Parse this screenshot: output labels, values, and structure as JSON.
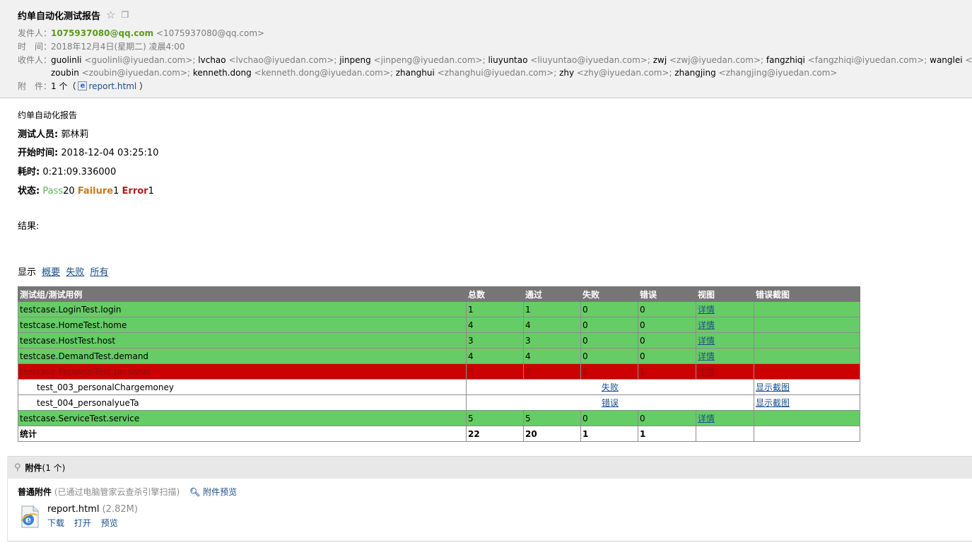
{
  "header": {
    "subject": "约单自动化测试报告",
    "sender_label": "发件人：",
    "sender_name": "1075937080@qq.com",
    "sender_addr": "<1075937080@qq.com>",
    "time_label": "时　间：",
    "time_value": "2018年12月4日(星期二) 凌晨4:00",
    "recipients_label": "收件人：",
    "recipients": [
      {
        "name": "guolinli",
        "addr": "<guolinli@iyuedan.com>;"
      },
      {
        "name": "lvchao",
        "addr": "<lvchao@iyuedan.com>;"
      },
      {
        "name": "jinpeng",
        "addr": "<jinpeng@iyuedan.com>;"
      },
      {
        "name": "liuyuntao",
        "addr": "<liuyuntao@iyuedan.com>;"
      },
      {
        "name": "zwj",
        "addr": "<zwj@iyuedan.com>;"
      },
      {
        "name": "fangzhiqi",
        "addr": "<fangzhiqi@iyuedan.com>;"
      },
      {
        "name": "wanglei",
        "addr": "<"
      },
      {
        "name": "zoubin",
        "addr": "<zoubin@iyuedan.com>;"
      },
      {
        "name": "kenneth.dong",
        "addr": "<kenneth.dong@iyuedan.com>;"
      },
      {
        "name": "zhanghui",
        "addr": "<zhanghui@iyuedan.com>;"
      },
      {
        "name": "zhy",
        "addr": "<zhy@iyuedan.com>;"
      },
      {
        "name": "zhangjing",
        "addr": "<zhangjing@iyuedan.com>"
      }
    ],
    "attachment_label": "附　件：",
    "attachment_count": "1 个（",
    "attachment_file": "report.html",
    "attachment_close": "）"
  },
  "report": {
    "heading": "约单自动化报告",
    "tester_label": "测试人员:",
    "tester": "郭林莉",
    "start_label": "开始时间:",
    "start": "2018-12-04 03:25:10",
    "duration_label": "耗时:",
    "duration": "0:21:09.336000",
    "status_label": "状态:",
    "pass_word": "Pass",
    "pass_count": "20",
    "failure_word": "Failure",
    "failure_count": "1",
    "error_word": "Error",
    "error_count": "1",
    "result_label": "结果:",
    "filter_label": "显示",
    "filter_summary": "概要",
    "filter_failed": "失败",
    "filter_all": "所有"
  },
  "table": {
    "headers": [
      "测试组/测试用例",
      "总数",
      "通过",
      "失败",
      "错误",
      "视图",
      "错误截图"
    ],
    "rows": [
      {
        "name": "testcase.LoginTest.login",
        "total": "1",
        "pass": "1",
        "fail": "0",
        "error": "0",
        "view": "详情"
      },
      {
        "name": "testcase.HomeTest.home",
        "total": "4",
        "pass": "4",
        "fail": "0",
        "error": "0",
        "view": "详情"
      },
      {
        "name": "testcase.HostTest.host",
        "total": "3",
        "pass": "3",
        "fail": "0",
        "error": "0",
        "view": "详情"
      },
      {
        "name": "testcase.DemandTest.demand",
        "total": "4",
        "pass": "4",
        "fail": "0",
        "error": "0",
        "view": "详情"
      },
      {
        "name": "testcase.PersonalTest.personal",
        "total": "5",
        "pass": "3",
        "fail": "1",
        "error": "1",
        "view": "详情"
      },
      {
        "name": "testcase.ServiceTest.service",
        "total": "5",
        "pass": "5",
        "fail": "0",
        "error": "0",
        "view": "详情"
      }
    ],
    "cases": [
      {
        "name": "test_003_personalChargemoney",
        "result": "失败",
        "screenshot": "显示截图"
      },
      {
        "name": "test_004_personalyueTa",
        "result": "错误",
        "screenshot": "显示截图"
      }
    ],
    "total": {
      "label": "统计",
      "total": "22",
      "pass": "20",
      "fail": "1",
      "error": "1"
    }
  },
  "attachments": {
    "bar_title": "附件",
    "bar_count": "(1 个)",
    "type_label": "普通附件",
    "scan_note": "(已通过电脑管家云查杀引擎扫描)",
    "preview_label": "附件预览",
    "file_name": "report.html",
    "file_size": "(2.82M)",
    "action_download": "下载",
    "action_open": "打开",
    "action_preview": "预览"
  },
  "colors": {
    "pass_row": "#66cc66",
    "fail_row": "#cc0000",
    "header_row": "#767676",
    "sender": "#5a9a1e"
  }
}
